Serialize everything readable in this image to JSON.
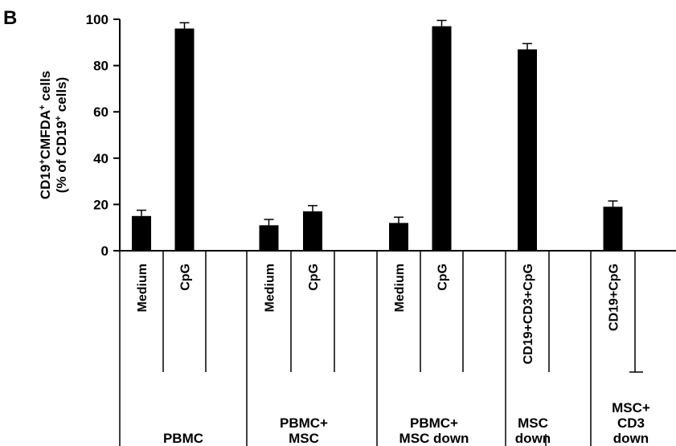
{
  "panel_label": "B",
  "chart_data": {
    "type": "bar",
    "ylabel": {
      "line1_parts": [
        "CD19",
        "+",
        "CMFDA",
        "+",
        " cells"
      ],
      "line2_parts": [
        "(% of CD19",
        "+",
        " cells)"
      ]
    },
    "ylim": [
      0,
      100
    ],
    "yticks": [
      0,
      20,
      40,
      60,
      80,
      100
    ],
    "grid": false,
    "legend": "none",
    "bar_color": "#000000",
    "groups": [
      {
        "lines": [
          "PBMC"
        ],
        "bars": [
          {
            "label": "Medium",
            "value": 15,
            "error": 2.5
          },
          {
            "label": "CpG",
            "value": 96,
            "error": 2.5
          }
        ]
      },
      {
        "lines": [
          "PBMC+",
          "MSC"
        ],
        "bars": [
          {
            "label": "Medium",
            "value": 11,
            "error": 2.5
          },
          {
            "label": "CpG",
            "value": 17,
            "error": 2.5
          }
        ]
      },
      {
        "lines": [
          "PBMC+",
          "MSC down"
        ],
        "bars": [
          {
            "label": "Medium",
            "value": 12,
            "error": 2.5
          },
          {
            "label": "CpG",
            "value": 97,
            "error": 2.5
          }
        ]
      },
      {
        "lines": [
          "MSC",
          "down"
        ],
        "bars": [
          {
            "label": "CD19+CD3+CpG",
            "value": 87,
            "error": 2.5
          }
        ]
      },
      {
        "lines": [
          "MSC+",
          "CD3",
          "down"
        ],
        "bars": [
          {
            "label": "CD19+CpG",
            "value": 19,
            "error": 2.5
          }
        ]
      }
    ]
  }
}
